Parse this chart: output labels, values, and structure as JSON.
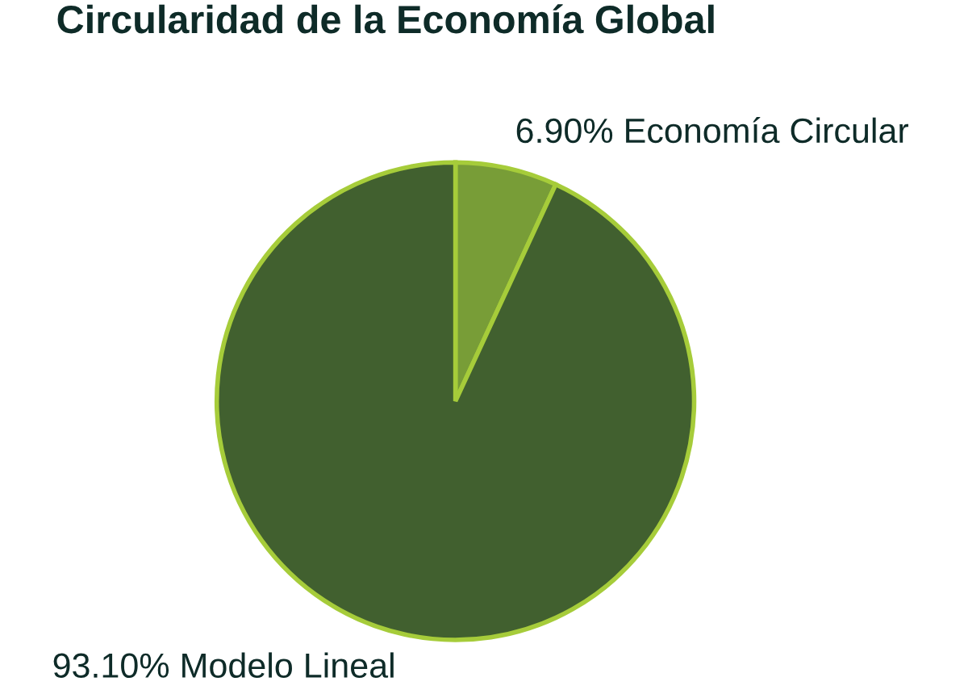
{
  "chart_data": {
    "type": "pie",
    "title": "Circularidad de la Economía Global",
    "categories": [
      "Economía Circular",
      "Modelo Lineal"
    ],
    "values": [
      6.9,
      93.1
    ],
    "value_labels": [
      "6.90%",
      "93.10%"
    ],
    "colors": [
      "#789d37",
      "#41602f"
    ]
  }
}
